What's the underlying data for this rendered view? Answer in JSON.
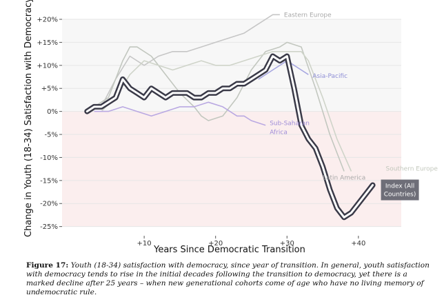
{
  "chart_data": {
    "type": "line",
    "title": "",
    "xlabel": "Years Since Democratic Transition",
    "ylabel": "Change in Youth (18-34) Satisfaction with Democracy",
    "xlim": [
      -1.5,
      46
    ],
    "ylim": [
      -27,
      21.5
    ],
    "x_ticks": [
      10,
      20,
      30,
      40
    ],
    "x_tick_labels": [
      "+10",
      "+20",
      "+30",
      "+40"
    ],
    "y_ticks": [
      20,
      15,
      10,
      5,
      0,
      -5,
      -10,
      -15,
      -20,
      -25
    ],
    "y_tick_labels": [
      "+20%",
      "+15%",
      "+10%",
      "+5%",
      "0%",
      "-5%",
      "-10%",
      "-15%",
      "-20%",
      "-25%"
    ],
    "grid": "horizontal",
    "shading": {
      "below_zero": "#fbeeee",
      "above_zero": "#f7f7f7"
    },
    "series": [
      {
        "name": "Eastern Europe",
        "label": "Eastern Europe",
        "color": "#c6c6c6",
        "x": [
          4,
          6,
          8,
          10,
          12,
          14,
          16,
          18,
          20,
          22,
          24,
          26,
          28,
          29
        ],
        "values": [
          1,
          7,
          12,
          10,
          12,
          13,
          13,
          14,
          15,
          16,
          17,
          19,
          21,
          21
        ]
      },
      {
        "name": "Latin America",
        "label": "Latin America",
        "color": "#c2c7bf",
        "x": [
          3,
          5,
          7,
          8,
          9,
          11,
          13,
          15,
          17,
          18,
          19,
          21,
          23,
          25,
          27,
          29,
          30,
          32,
          34,
          36,
          38
        ],
        "values": [
          1,
          3,
          11,
          14,
          14,
          12,
          8,
          4,
          1,
          -1,
          -2,
          -1,
          3,
          9,
          13,
          14,
          15,
          14,
          5,
          -5,
          -13
        ]
      },
      {
        "name": "Southern Europe",
        "label": "Southern Europe",
        "color": "#cfd4c9",
        "x": [
          4,
          6,
          8,
          10,
          12,
          14,
          16,
          18,
          20,
          22,
          24,
          26,
          28,
          30,
          32,
          33,
          35,
          37,
          39
        ],
        "values": [
          0,
          3,
          8,
          11,
          10,
          9,
          10,
          11,
          10,
          10,
          11,
          12,
          13,
          13,
          13,
          11,
          3,
          -6,
          -13
        ]
      },
      {
        "name": "Asia-Pacific",
        "label": "Asia-Pacific",
        "color": "#a6a6e0",
        "x": [
          26,
          28,
          30,
          31,
          32,
          33
        ],
        "values": [
          7,
          9,
          11,
          10,
          9,
          8
        ]
      },
      {
        "name": "Sub-Saharan Africa",
        "label_line1": "Sub-Saharan",
        "label_line2": "Africa",
        "color": "#b9a8e2",
        "x": [
          3,
          5,
          7,
          9,
          11,
          13,
          15,
          17,
          19,
          21,
          22,
          23,
          24,
          25,
          27
        ],
        "values": [
          0,
          0,
          1,
          0,
          -1,
          0,
          1,
          1,
          2,
          1,
          0,
          -1,
          -1,
          -2,
          -3
        ]
      },
      {
        "name": "Index (All Countries)",
        "label_line1": "Index (All",
        "label_line2": "Countries)",
        "color": "#3a3a48",
        "x": [
          2,
          3,
          4,
          5,
          6,
          7,
          8,
          9,
          10,
          11,
          12,
          13,
          14,
          15,
          16,
          17,
          18,
          19,
          20,
          21,
          22,
          23,
          24,
          25,
          26,
          27,
          28,
          29,
          30,
          31,
          32,
          33,
          34,
          35,
          36,
          37,
          38,
          39,
          40,
          41,
          42
        ],
        "values": [
          0,
          1,
          1,
          2,
          3,
          7,
          5,
          4,
          3,
          5,
          4,
          3,
          4,
          4,
          4,
          3,
          3,
          4,
          4,
          5,
          5,
          6,
          6,
          7,
          8,
          9,
          12,
          11,
          12,
          5,
          -3,
          -6,
          -8,
          -12,
          -17,
          -21,
          -23,
          -22,
          -20,
          -18,
          -16
        ]
      }
    ]
  },
  "caption": {
    "label": "Figure 17:",
    "text": "Youth (18-34) satisfaction with democracy, since year of transition. In general, youth satisfaction with democracy tends to rise in the initial decades following the transition to democracy, yet there is a marked decline after 25 years – when new generational cohorts come of age who have no living memory of undemocratic rule."
  }
}
